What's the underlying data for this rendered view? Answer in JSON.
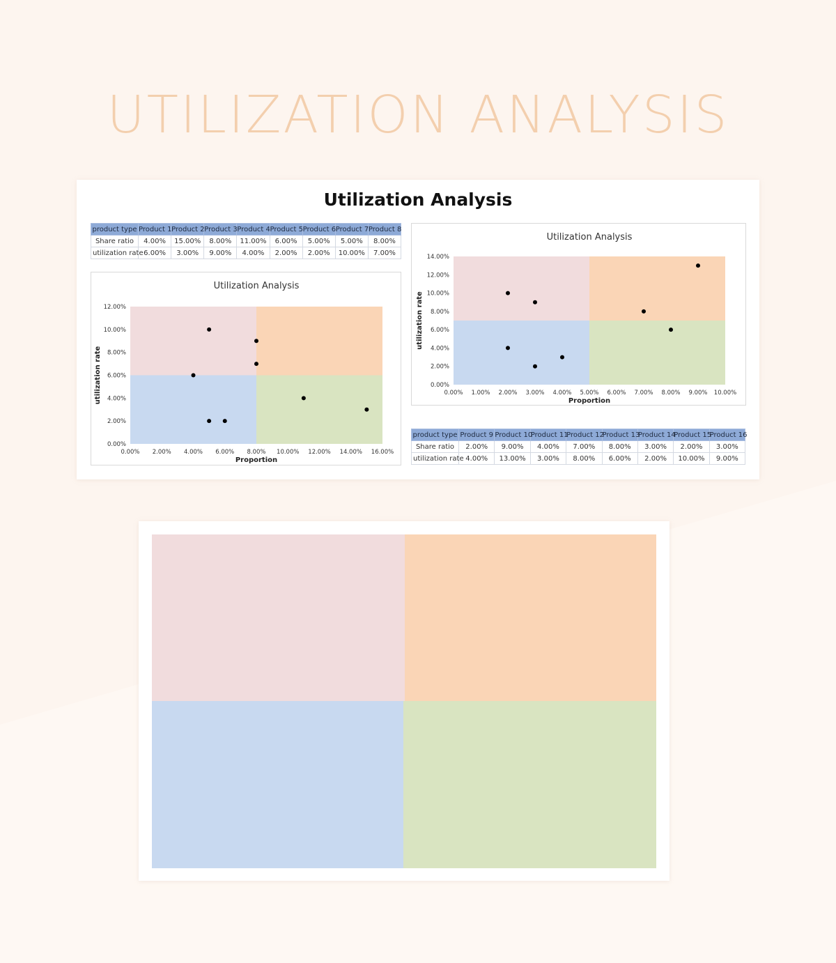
{
  "page": {
    "hero_title": "UTILIZATION ANALYSIS",
    "sheet_title": "Utilization Analysis"
  },
  "colors": {
    "page_bg": "#fdf5ef",
    "hero_text": "#f3cfae",
    "quadrant_top_left": "#f1dcdd",
    "quadrant_top_right": "#fad5b6",
    "quadrant_bottom_left": "#c8d9f0",
    "quadrant_bottom_right": "#d9e4c1",
    "table_header": "#8eaad7",
    "point": "#000000"
  },
  "table1": {
    "header_label": "product type",
    "products": [
      "Product 1",
      "Product 2",
      "Product 3",
      "Product 4",
      "Product 5",
      "Product 6",
      "Product 7",
      "Product 8"
    ],
    "rows": [
      {
        "label": "Share ratio",
        "values": [
          "4.00%",
          "15.00%",
          "8.00%",
          "11.00%",
          "6.00%",
          "5.00%",
          "5.00%",
          "8.00%"
        ]
      },
      {
        "label": "utilization rate",
        "values": [
          "6.00%",
          "3.00%",
          "9.00%",
          "4.00%",
          "2.00%",
          "2.00%",
          "10.00%",
          "7.00%"
        ]
      }
    ]
  },
  "table2": {
    "header_label": "product type",
    "products": [
      "Product 9",
      "Product 10",
      "Product 11",
      "Product 12",
      "Product 13",
      "Product 14",
      "Product 15",
      "Product 16"
    ],
    "rows": [
      {
        "label": "Share ratio",
        "values": [
          "2.00%",
          "9.00%",
          "4.00%",
          "7.00%",
          "8.00%",
          "3.00%",
          "2.00%",
          "3.00%"
        ]
      },
      {
        "label": "utilization rate",
        "values": [
          "4.00%",
          "13.00%",
          "3.00%",
          "8.00%",
          "6.00%",
          "2.00%",
          "10.00%",
          "9.00%"
        ]
      }
    ]
  },
  "chart_data": [
    {
      "type": "scatter",
      "title": "Utilization Analysis",
      "xlabel": "Proportion",
      "ylabel": "utilization rate",
      "xlim": [
        0,
        16
      ],
      "ylim": [
        0,
        12
      ],
      "xticks": [
        "0.00%",
        "2.00%",
        "4.00%",
        "6.00%",
        "8.00%",
        "10.00%",
        "12.00%",
        "14.00%",
        "16.00%"
      ],
      "yticks": [
        "0.00%",
        "2.00%",
        "4.00%",
        "6.00%",
        "8.00%",
        "10.00%",
        "12.00%"
      ],
      "quadrant_split": {
        "x": 8,
        "y": 6
      },
      "points": [
        {
          "x": 4,
          "y": 6
        },
        {
          "x": 15,
          "y": 3
        },
        {
          "x": 8,
          "y": 9
        },
        {
          "x": 11,
          "y": 4
        },
        {
          "x": 6,
          "y": 2
        },
        {
          "x": 5,
          "y": 2
        },
        {
          "x": 5,
          "y": 10
        },
        {
          "x": 8,
          "y": 7
        }
      ]
    },
    {
      "type": "scatter",
      "title": "Utilization Analysis",
      "xlabel": "Proportion",
      "ylabel": "utilization rate",
      "xlim": [
        0,
        10
      ],
      "ylim": [
        0,
        14
      ],
      "xticks": [
        "0.00%",
        "1.00%",
        "2.00%",
        "3.00%",
        "4.00%",
        "5.00%",
        "6.00%",
        "7.00%",
        "8.00%",
        "9.00%",
        "10.00%"
      ],
      "yticks": [
        "0.00%",
        "2.00%",
        "4.00%",
        "6.00%",
        "8.00%",
        "10.00%",
        "12.00%",
        "14.00%"
      ],
      "quadrant_split": {
        "x": 5,
        "y": 7
      },
      "points": [
        {
          "x": 2,
          "y": 4
        },
        {
          "x": 9,
          "y": 13
        },
        {
          "x": 4,
          "y": 3
        },
        {
          "x": 7,
          "y": 8
        },
        {
          "x": 8,
          "y": 6
        },
        {
          "x": 3,
          "y": 2
        },
        {
          "x": 2,
          "y": 10
        },
        {
          "x": 3,
          "y": 9
        }
      ]
    }
  ]
}
